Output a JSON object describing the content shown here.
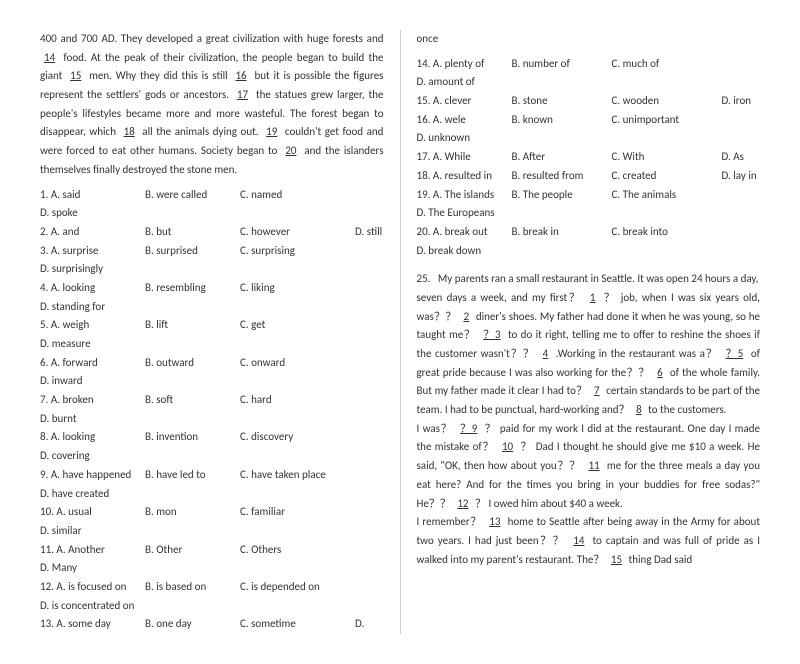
{
  "left": {
    "passage_parts": [
      "400 and 700 AD. They developed a great civilization with huge forests and ",
      " food. At the peak of their civilization, the people began to build the giant ",
      " men. Why they did this is still ",
      " but it is possible the figures represent the settlers' gods or ancestors. ",
      " the statues grew larger, the people's lifestyles became more and more wasteful. The forest began to disappear, which ",
      " all the animals dying out. ",
      " couldn't get food and were forced to eat other humans. Society began to ",
      " and the islanders themselves finally destroyed the stone men."
    ],
    "blanks": [
      "14",
      "15",
      "16",
      "17",
      "18",
      "19",
      "20"
    ],
    "questions": [
      {
        "n": "1",
        "a": "A. said",
        "b": "B. were called",
        "c": "C. named",
        "d": "D. spoke"
      },
      {
        "n": "2",
        "a": "A. and",
        "b": "B. but",
        "c": "C. however",
        "d": "D. still"
      },
      {
        "n": "3",
        "a": "A. surprise",
        "b": "B. surprised",
        "c": "C. surprising",
        "d": "D. surprisingly"
      },
      {
        "n": "4",
        "a": "A. looking",
        "b": "B. resembling",
        "c": "C. liking",
        "d": "D. standing for"
      },
      {
        "n": "5",
        "a": "A. weigh",
        "b": "B. lift",
        "c": "C. get",
        "d": "D. measure"
      },
      {
        "n": "6",
        "a": "A. forward",
        "b": "B. outward",
        "c": "C. onward",
        "d": "D. inward"
      },
      {
        "n": "7",
        "a": "A. broken",
        "b": "B. soft",
        "c": "C. hard",
        "d": "D. burnt"
      },
      {
        "n": "8",
        "a": "A. looking",
        "b": "B. invention",
        "c": "C. discovery",
        "d": "D. covering"
      },
      {
        "n": "9",
        "a": "A. have happened",
        "b": "B. have led to",
        "c": "C. have taken place",
        "d": "D. have created"
      },
      {
        "n": "10",
        "a": "A. usual",
        "b": "B. mon",
        "c": "C. familiar",
        "d": "D. similar"
      },
      {
        "n": "11",
        "a": "A. Another",
        "b": "B. Other",
        "c": "C. Others",
        "d": "D. Many"
      },
      {
        "n": "12",
        "a": "A. is focused on",
        "b": "B. is based on",
        "c": "C. is depended on",
        "d": "D. is concentrated on"
      },
      {
        "n": "13",
        "a": "A. some day",
        "b": "B. one day",
        "c": "C. sometime",
        "d": "D."
      }
    ]
  },
  "right": {
    "top_word": "once",
    "questions_top": [
      {
        "n": "14",
        "a": "A. plenty of",
        "b": "B. number of",
        "c": "C. much of",
        "d": "D. amount of"
      },
      {
        "n": "15",
        "a": "A. clever",
        "b": "B. stone",
        "c": "C. wooden",
        "d": "D. iron"
      },
      {
        "n": "16",
        "a": "A. wele",
        "b": "B. known",
        "c": "C. unimportant",
        "d": "D. unknown"
      },
      {
        "n": "17",
        "a": "A. While",
        "b": "B. After",
        "c": "C. With",
        "d": "D. As"
      },
      {
        "n": "18",
        "a": "A. resulted in",
        "b": "B. resulted from",
        "c": "C. created",
        "d": "D.  lay in"
      },
      {
        "n": "19",
        "a": "A. The islands",
        "b": "B. The people",
        "c": "C. The animals",
        "d": "D.  The Europeans"
      },
      {
        "n": "20",
        "a": "A. break out",
        "b": "B. break in",
        "c": "C. break into",
        "d": "D. break down"
      }
    ],
    "q25_label": "25.",
    "q25_intro": "My parents ran a small restaurant in Seattle. It was open 24 hours a day,",
    "passage2_parts": [
      "seven days a week, and my first？",
      "？ job, when I was six years old, was？？",
      "diner's shoes. My father had done it when he was young, so he taught me？ ",
      " to do it right, telling me to offer to reshine the shoes if the customer wasn't？？",
      " .Working in the restaurant was a？",
      " of great pride because I was also working for the？？",
      " of the whole family. But my father made it clear I had to？",
      " certain standards to be part of the team. I had to be punctual, hard-working and？",
      " to the customers."
    ],
    "blanks2": [
      "1",
      "2",
      "？3",
      "4",
      "？5",
      "6",
      "7",
      "8"
    ],
    "passage3_parts": [
      "I was？",
      "？ paid for my work I did at the restaurant. One day I made the mistake of？",
      "？  Dad I thought he should give me $10 a week. He said, \"OK, then how about you？？",
      " me for the three meals a day you eat here? And for the times you bring in your buddies for free sodas?\" He？？",
      "？ I owed him about $40 a week."
    ],
    "blanks3": [
      "？9",
      "10",
      "11",
      "12"
    ],
    "passage4_parts": [
      "I remember？",
      " home to Seattle after being away in the Army for about two years. I had just been？？",
      " to captain and was full of pride as I walked into my parent's restaurant. The？",
      " thing Dad said"
    ],
    "blanks4": [
      "13",
      "14",
      "15"
    ]
  }
}
